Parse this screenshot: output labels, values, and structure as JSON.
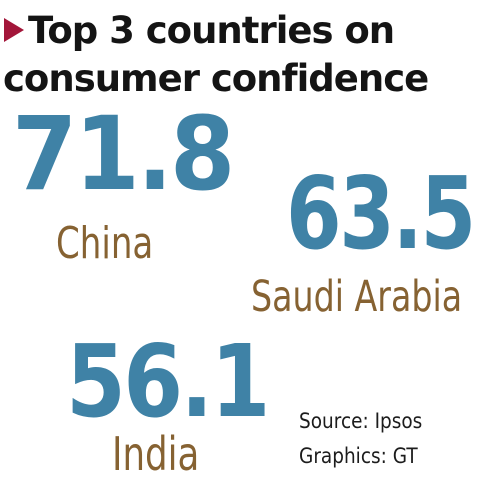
{
  "title": {
    "line1": "Top 3 countries on",
    "line2": "consumer confidence"
  },
  "colors": {
    "marker": "#a3163a",
    "value": "#3f82a6",
    "country": "#866232",
    "text": "#141414"
  },
  "chart_data": {
    "type": "table",
    "title": "Top 3 countries on consumer confidence",
    "categories": [
      "China",
      "Saudi Arabia",
      "India"
    ],
    "values": [
      71.8,
      63.5,
      56.1
    ],
    "value_labels": [
      "71.8",
      "63.5",
      "56.1"
    ]
  },
  "footer": {
    "source": "Source: Ipsos",
    "graphics": "Graphics: GT"
  }
}
